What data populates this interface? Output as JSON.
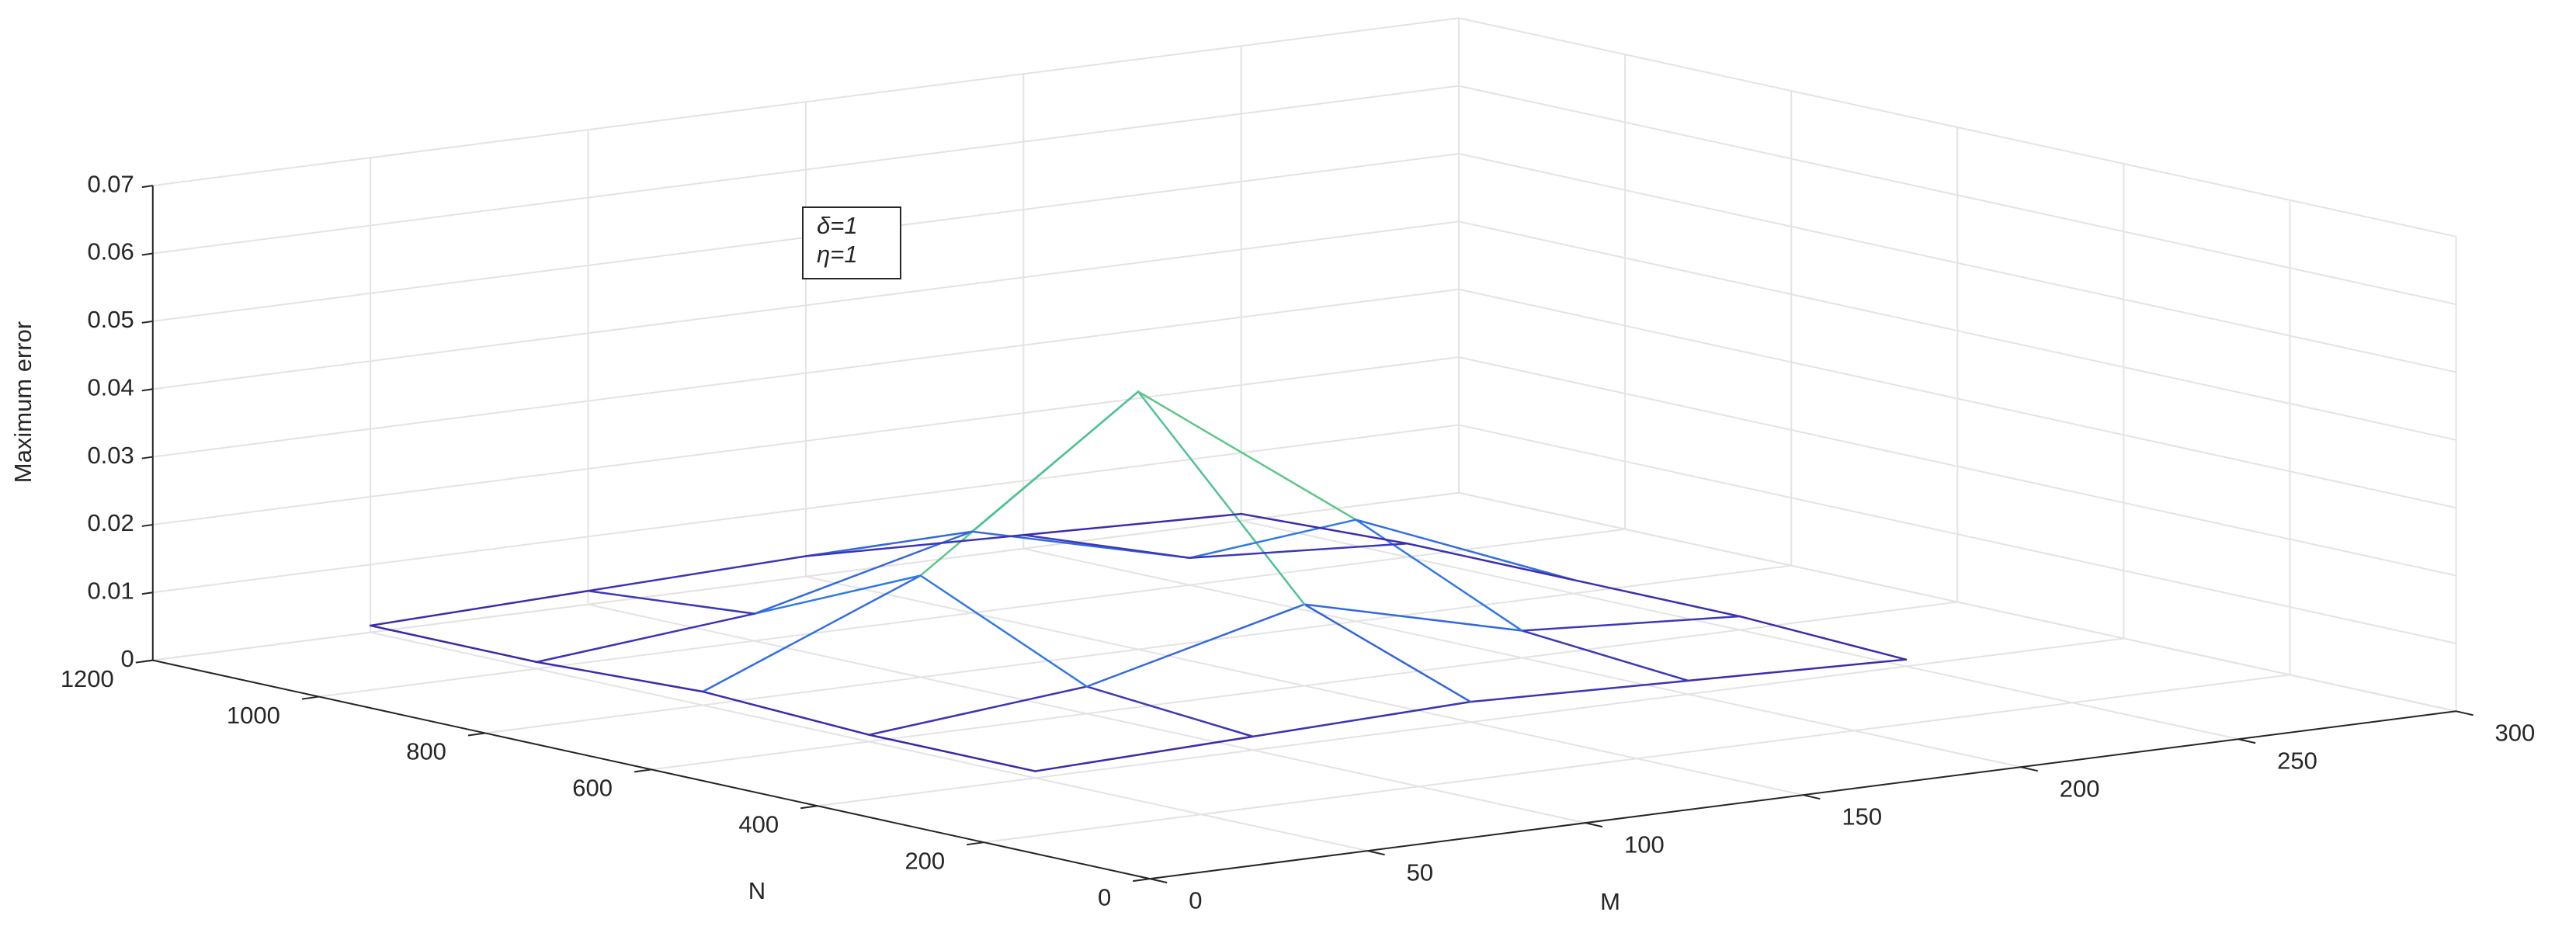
{
  "chart_data": {
    "type": "mesh3d",
    "x_label": "M",
    "y_label": "N",
    "z_label": "Maximum error",
    "annotation": [
      "δ=1",
      "η=1"
    ],
    "x": [
      50,
      100,
      150,
      200,
      250
    ],
    "y": [
      400,
      600,
      800,
      1000,
      1200
    ],
    "z": [
      [
        0.001,
        0.002,
        0.003,
        0.002,
        0.001
      ],
      [
        0.001,
        0.004,
        0.012,
        0.004,
        0.002
      ],
      [
        0.002,
        0.015,
        0.038,
        0.015,
        0.002
      ],
      [
        0.001,
        0.004,
        0.012,
        0.004,
        0.002
      ],
      [
        0.001,
        0.002,
        0.003,
        0.002,
        0.001
      ]
    ],
    "colormap": [
      "#3e26a8",
      "#2f7ff0",
      "#1fb3d3",
      "#6fcc6a",
      "#f9fb15"
    ],
    "xlim": [
      0,
      300
    ],
    "ylim": [
      0,
      1200
    ],
    "zlim": [
      0,
      0.07
    ],
    "xticks": [
      0,
      50,
      100,
      150,
      200,
      250,
      300
    ],
    "yticks": [
      0,
      200,
      400,
      600,
      800,
      1000,
      1200
    ],
    "zticks": [
      0,
      0.01,
      0.02,
      0.03,
      0.04,
      0.05,
      0.06,
      0.07
    ],
    "grid": true
  }
}
